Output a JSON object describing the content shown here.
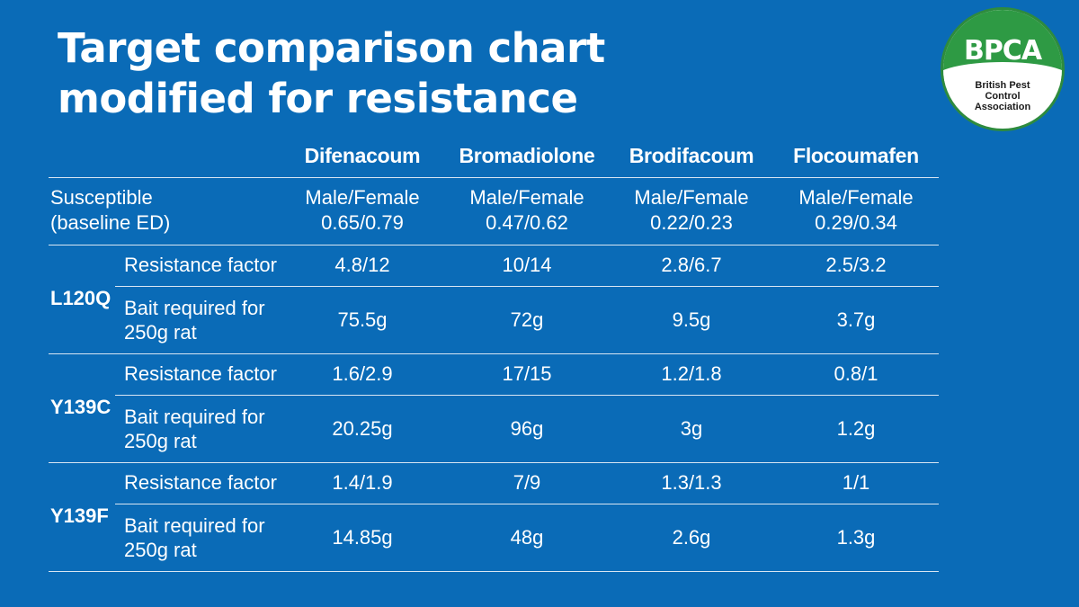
{
  "title": {
    "line1": "Target comparison chart",
    "line2": "modified for resistance"
  },
  "logo": {
    "word": "BPCA",
    "sub1": "British Pest",
    "sub2": "Control",
    "sub3": "Association"
  },
  "chart_data": {
    "type": "table",
    "columns": [
      "Difenacoum",
      "Bromadiolone",
      "Brodifacoum",
      "Flocoumafen"
    ],
    "susceptible": {
      "label1": "Susceptible",
      "label2": "(baseline ED)",
      "prefix": "Male/Female",
      "values": [
        "0.65/0.79",
        "0.47/0.62",
        "0.22/0.23",
        "0.29/0.34"
      ]
    },
    "groups": [
      {
        "name": "L120Q",
        "rows": [
          {
            "label1": "Resistance factor",
            "label2": "",
            "values": [
              "4.8/12",
              "10/14",
              "2.8/6.7",
              "2.5/3.2"
            ]
          },
          {
            "label1": "Bait required for",
            "label2": "250g rat",
            "values": [
              "75.5g",
              "72g",
              "9.5g",
              "3.7g"
            ]
          }
        ]
      },
      {
        "name": "Y139C",
        "rows": [
          {
            "label1": "Resistance factor",
            "label2": "",
            "values": [
              "1.6/2.9",
              "17/15",
              "1.2/1.8",
              "0.8/1"
            ]
          },
          {
            "label1": "Bait required for",
            "label2": "250g rat",
            "values": [
              "20.25g",
              "96g",
              "3g",
              "1.2g"
            ]
          }
        ]
      },
      {
        "name": "Y139F",
        "rows": [
          {
            "label1": "Resistance factor",
            "label2": "",
            "values": [
              "1.4/1.9",
              "7/9",
              "1.3/1.3",
              "1/1"
            ]
          },
          {
            "label1": "Bait required for",
            "label2": "250g rat",
            "values": [
              "14.85g",
              "48g",
              "2.6g",
              "1.3g"
            ]
          }
        ]
      }
    ]
  }
}
